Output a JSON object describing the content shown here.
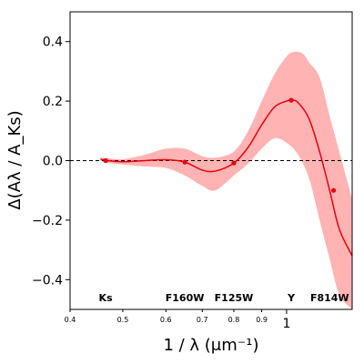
{
  "chart_data": {
    "type": "line",
    "title": "",
    "xlabel": "1 / λ (μm⁻¹)",
    "ylabel": "Δ(Aλ / A_Ks)",
    "xscale": "log",
    "xlim": [
      0.4,
      1.32
    ],
    "ylim": [
      -0.5,
      0.5
    ],
    "grid": false,
    "legend": "none",
    "x_ticks": [
      {
        "value": 0.4,
        "label": "0.4",
        "size": "small"
      },
      {
        "value": 0.5,
        "label": "0.5",
        "size": "small"
      },
      {
        "value": 0.6,
        "label": "0.6",
        "size": "small"
      },
      {
        "value": 0.7,
        "label": "0.7",
        "size": "small"
      },
      {
        "value": 0.8,
        "label": "0.8",
        "size": "small"
      },
      {
        "value": 0.9,
        "label": "0.9",
        "size": "small"
      },
      {
        "value": 1.0,
        "label": "1",
        "size": "large"
      }
    ],
    "y_ticks": [
      {
        "value": -0.4,
        "label": "−0.4"
      },
      {
        "value": -0.2,
        "label": "−0.2"
      },
      {
        "value": 0.0,
        "label": "0.0"
      },
      {
        "value": 0.2,
        "label": "0.2"
      },
      {
        "value": 0.4,
        "label": "0.4"
      }
    ],
    "reference_line": {
      "y": 0.0,
      "style": "dashed",
      "color": "#000000"
    },
    "series": [
      {
        "color": "#e8000b",
        "band_color": "#ffb3b3",
        "curve": [
          {
            "x": 0.455,
            "y": 0.005
          },
          {
            "x": 0.47,
            "y": 0.0
          },
          {
            "x": 0.5,
            "y": -0.004
          },
          {
            "x": 0.55,
            "y": 0.0
          },
          {
            "x": 0.6,
            "y": 0.003
          },
          {
            "x": 0.65,
            "y": -0.005
          },
          {
            "x": 0.7,
            "y": -0.032
          },
          {
            "x": 0.74,
            "y": -0.035
          },
          {
            "x": 0.8,
            "y": -0.008
          },
          {
            "x": 0.85,
            "y": 0.045
          },
          {
            "x": 0.9,
            "y": 0.12
          },
          {
            "x": 0.95,
            "y": 0.18
          },
          {
            "x": 1.0,
            "y": 0.2
          },
          {
            "x": 1.02,
            "y": 0.203
          },
          {
            "x": 1.05,
            "y": 0.195
          },
          {
            "x": 1.1,
            "y": 0.14
          },
          {
            "x": 1.15,
            "y": 0.03
          },
          {
            "x": 1.2,
            "y": -0.1
          },
          {
            "x": 1.25,
            "y": -0.23
          },
          {
            "x": 1.32,
            "y": -0.32
          }
        ],
        "band_upper": [
          {
            "x": 0.455,
            "y": 0.01
          },
          {
            "x": 0.47,
            "y": 0.008
          },
          {
            "x": 0.5,
            "y": 0.005
          },
          {
            "x": 0.55,
            "y": 0.02
          },
          {
            "x": 0.6,
            "y": 0.04
          },
          {
            "x": 0.65,
            "y": 0.04
          },
          {
            "x": 0.7,
            "y": 0.015
          },
          {
            "x": 0.74,
            "y": 0.01
          },
          {
            "x": 0.8,
            "y": 0.03
          },
          {
            "x": 0.85,
            "y": 0.1
          },
          {
            "x": 0.9,
            "y": 0.2
          },
          {
            "x": 0.95,
            "y": 0.29
          },
          {
            "x": 1.0,
            "y": 0.35
          },
          {
            "x": 1.03,
            "y": 0.365
          },
          {
            "x": 1.07,
            "y": 0.36
          },
          {
            "x": 1.1,
            "y": 0.33
          },
          {
            "x": 1.15,
            "y": 0.28
          },
          {
            "x": 1.2,
            "y": 0.15
          },
          {
            "x": 1.25,
            "y": 0.03
          },
          {
            "x": 1.32,
            "y": -0.13
          }
        ],
        "band_lower": [
          {
            "x": 0.455,
            "y": 0.0
          },
          {
            "x": 0.47,
            "y": -0.008
          },
          {
            "x": 0.5,
            "y": -0.013
          },
          {
            "x": 0.55,
            "y": -0.02
          },
          {
            "x": 0.6,
            "y": -0.025
          },
          {
            "x": 0.65,
            "y": -0.05
          },
          {
            "x": 0.7,
            "y": -0.085
          },
          {
            "x": 0.74,
            "y": -0.1
          },
          {
            "x": 0.8,
            "y": -0.05
          },
          {
            "x": 0.85,
            "y": -0.01
          },
          {
            "x": 0.9,
            "y": 0.04
          },
          {
            "x": 0.95,
            "y": 0.075
          },
          {
            "x": 1.0,
            "y": 0.06
          },
          {
            "x": 1.05,
            "y": 0.02
          },
          {
            "x": 1.1,
            "y": -0.06
          },
          {
            "x": 1.15,
            "y": -0.2
          },
          {
            "x": 1.2,
            "y": -0.33
          },
          {
            "x": 1.25,
            "y": -0.45
          },
          {
            "x": 1.32,
            "y": -0.5
          }
        ],
        "markers": [
          {
            "x": 0.465,
            "y": 0.0
          },
          {
            "x": 0.65,
            "y": -0.005
          },
          {
            "x": 0.8,
            "y": -0.008
          },
          {
            "x": 1.02,
            "y": 0.203
          },
          {
            "x": 1.22,
            "y": -0.1
          }
        ]
      }
    ],
    "filter_labels": [
      {
        "x": 0.465,
        "label": "Ks"
      },
      {
        "x": 0.65,
        "label": "F160W"
      },
      {
        "x": 0.8,
        "label": "F125W"
      },
      {
        "x": 1.02,
        "label": "Y"
      },
      {
        "x": 1.2,
        "label": "F814W"
      }
    ]
  }
}
